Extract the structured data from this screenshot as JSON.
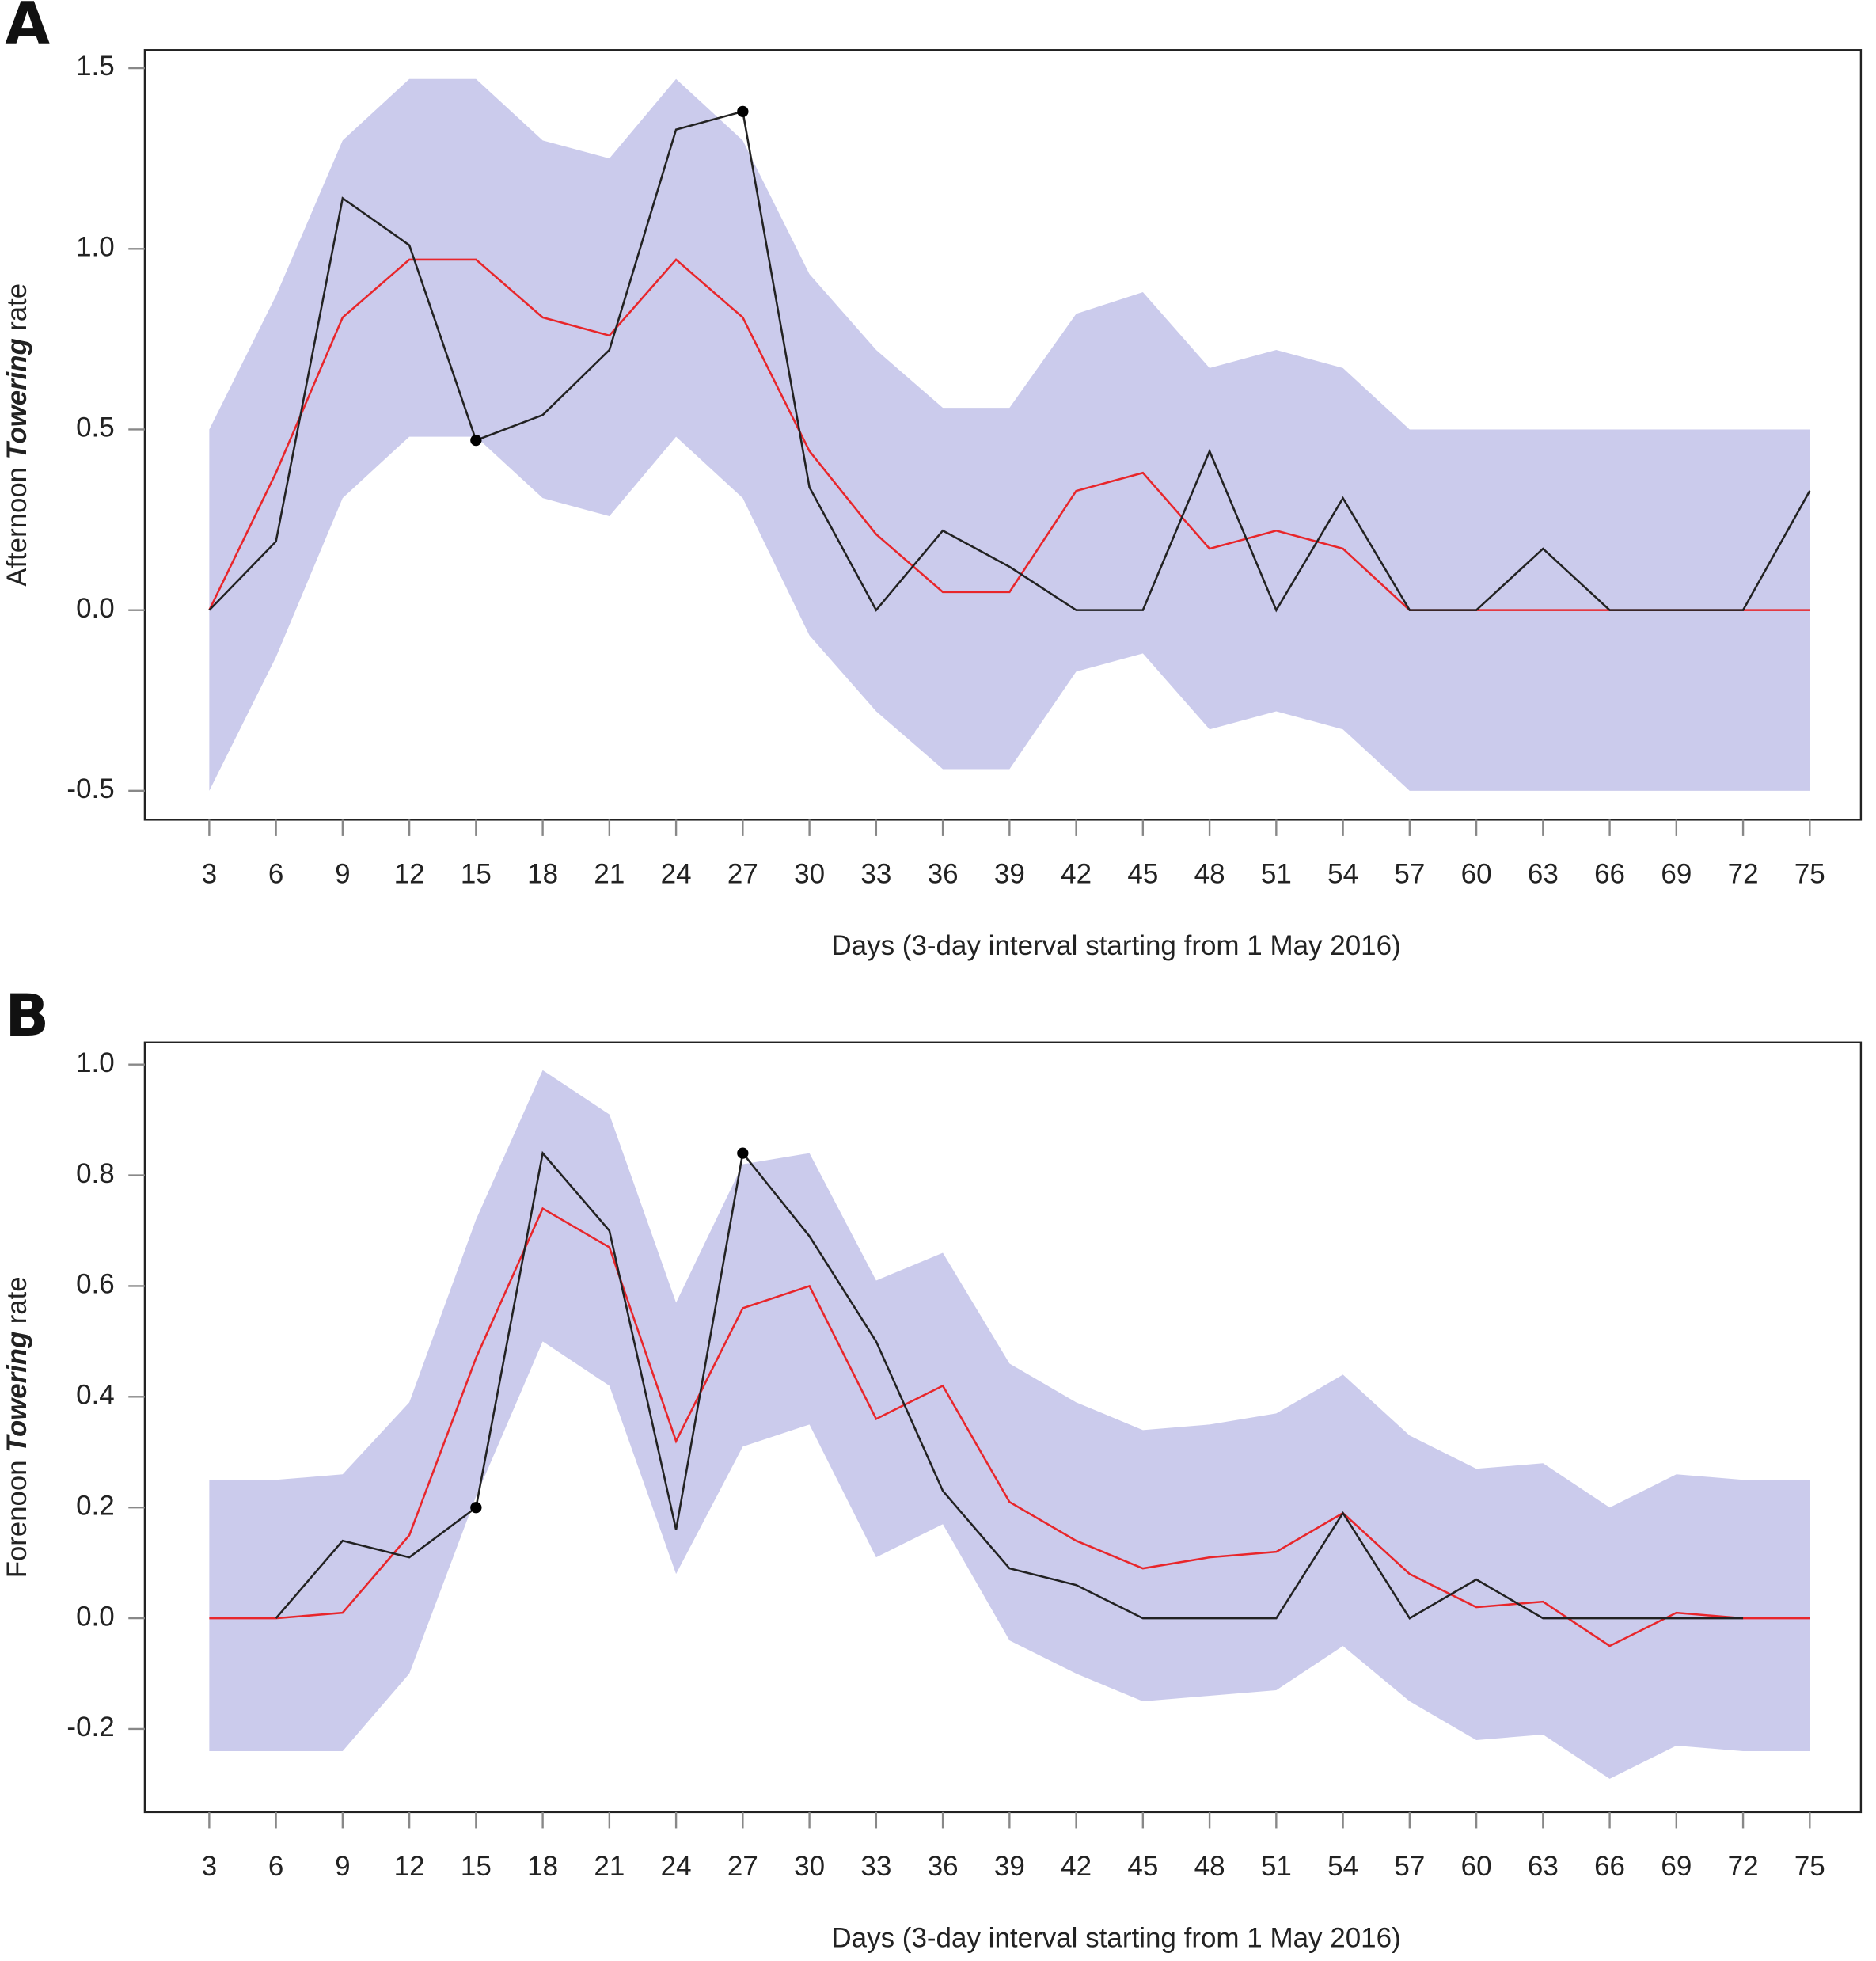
{
  "chart_data": [
    {
      "type": "line",
      "panel": "A",
      "ylabel": [
        "Afternoon",
        "Towering",
        "rate"
      ],
      "ylabel_italic": 1,
      "xlabel": "Days (3-day interval starting from 1 May 2016)",
      "x": [
        3,
        6,
        9,
        12,
        15,
        18,
        21,
        24,
        27,
        30,
        33,
        36,
        39,
        42,
        45,
        48,
        51,
        54,
        57,
        60,
        63,
        66,
        69,
        72,
        75
      ],
      "xlim": [
        0.1,
        77.3
      ],
      "xticks": [
        3,
        6,
        9,
        12,
        15,
        18,
        21,
        24,
        27,
        30,
        33,
        36,
        39,
        42,
        45,
        48,
        51,
        54,
        57,
        60,
        63,
        66,
        69,
        72,
        75
      ],
      "ylim": [
        -0.58,
        1.55
      ],
      "yticks": [
        -0.5,
        {
          "value": 0,
          "label": "0.0"
        },
        0.5,
        {
          "value": 1,
          "label": "1.0"
        },
        1.5
      ],
      "grid": false,
      "band": {
        "color": "#cbcbec",
        "upper": [
          0.5,
          0.87,
          1.3,
          1.47,
          1.47,
          1.3,
          1.25,
          1.47,
          1.3,
          0.93,
          0.72,
          0.56,
          0.56,
          0.82,
          0.88,
          0.67,
          0.72,
          0.67,
          0.5,
          0.5,
          0.5,
          0.5,
          0.5,
          0.5,
          0.5
        ],
        "lower": [
          -0.5,
          -0.13,
          0.31,
          0.48,
          0.48,
          0.31,
          0.26,
          0.48,
          0.31,
          -0.07,
          -0.28,
          -0.44,
          -0.44,
          -0.17,
          -0.12,
          -0.33,
          -0.28,
          -0.33,
          -0.5,
          -0.5,
          -0.5,
          -0.5,
          -0.5,
          -0.5,
          -0.5
        ]
      },
      "series": [
        {
          "color": "#e8262b",
          "values": [
            0,
            0.38,
            0.81,
            0.97,
            0.97,
            0.81,
            0.76,
            0.97,
            0.81,
            0.44,
            0.21,
            0.05,
            0.05,
            0.33,
            0.38,
            0.17,
            0.22,
            0.17,
            0,
            0,
            0,
            0,
            0,
            0,
            0
          ]
        },
        {
          "color": "#222222",
          "values": [
            0,
            0.19,
            1.14,
            1.01,
            0.47,
            0.54,
            0.72,
            1.33,
            1.38,
            0.34,
            0,
            0.22,
            0.12,
            0,
            0,
            0.44,
            0,
            0.31,
            0,
            0,
            0.17,
            0,
            0,
            0,
            0.33
          ]
        },
        {
          "color": "#000000",
          "marker": true,
          "values": [
            null,
            null,
            null,
            null,
            0.47,
            null,
            null,
            null,
            1.38,
            null,
            null,
            null,
            null,
            null,
            null,
            null,
            null,
            null,
            null,
            null,
            null,
            null,
            null,
            null,
            null
          ]
        }
      ]
    },
    {
      "type": "line",
      "panel": "B",
      "ylabel": [
        "Forenoon",
        "Towering",
        "rate"
      ],
      "ylabel_italic": 1,
      "xlabel": "Days (3-day interval starting from 1 May 2016)",
      "x": [
        3,
        6,
        9,
        12,
        15,
        18,
        21,
        24,
        27,
        30,
        33,
        36,
        39,
        42,
        45,
        48,
        51,
        54,
        57,
        60,
        63,
        66,
        69,
        72,
        75
      ],
      "xlim": [
        0.1,
        77.3
      ],
      "xticks": [
        3,
        6,
        9,
        12,
        15,
        18,
        21,
        24,
        27,
        30,
        33,
        36,
        39,
        42,
        45,
        48,
        51,
        54,
        57,
        60,
        63,
        66,
        69,
        72,
        75
      ],
      "ylim": [
        -0.35,
        1.04
      ],
      "yticks": [
        -0.2,
        {
          "value": 0,
          "label": "0.0"
        },
        0.2,
        0.4,
        0.6,
        0.8,
        {
          "value": 1,
          "label": "1.0"
        }
      ],
      "grid": false,
      "band": {
        "color": "#cbcbec",
        "upper": [
          0.25,
          0.25,
          0.26,
          0.39,
          0.72,
          0.99,
          0.91,
          0.57,
          0.82,
          0.84,
          0.61,
          0.66,
          0.46,
          0.39,
          0.34,
          0.35,
          0.37,
          0.44,
          0.33,
          0.27,
          0.28,
          0.2,
          0.26,
          0.25,
          0.25
        ],
        "lower": [
          -0.24,
          -0.24,
          -0.24,
          -0.1,
          0.22,
          0.5,
          0.42,
          0.08,
          0.31,
          0.35,
          0.11,
          0.17,
          -0.04,
          -0.1,
          -0.15,
          -0.14,
          -0.13,
          -0.05,
          -0.15,
          -0.22,
          -0.21,
          -0.29,
          -0.23,
          -0.24,
          -0.24
        ]
      },
      "series": [
        {
          "color": "#e8262b",
          "values": [
            0,
            0,
            0.01,
            0.15,
            0.47,
            0.74,
            0.67,
            0.32,
            0.56,
            0.6,
            0.36,
            0.42,
            0.21,
            0.14,
            0.09,
            0.11,
            0.12,
            0.19,
            0.08,
            0.02,
            0.03,
            -0.05,
            0.01,
            0,
            0
          ]
        },
        {
          "color": "#222222",
          "values": [
            null,
            0,
            0.14,
            0.11,
            0.2,
            0.84,
            0.7,
            0.16,
            0.84,
            0.69,
            0.5,
            0.23,
            0.09,
            0.06,
            0,
            0,
            0,
            0.19,
            0,
            0.07,
            0,
            0,
            0,
            0,
            null
          ]
        },
        {
          "color": "#000000",
          "marker": true,
          "values": [
            null,
            null,
            null,
            null,
            0.2,
            null,
            null,
            null,
            0.84,
            null,
            null,
            null,
            null,
            null,
            null,
            null,
            null,
            null,
            null,
            null,
            null,
            null,
            null,
            null,
            null
          ]
        }
      ]
    }
  ]
}
